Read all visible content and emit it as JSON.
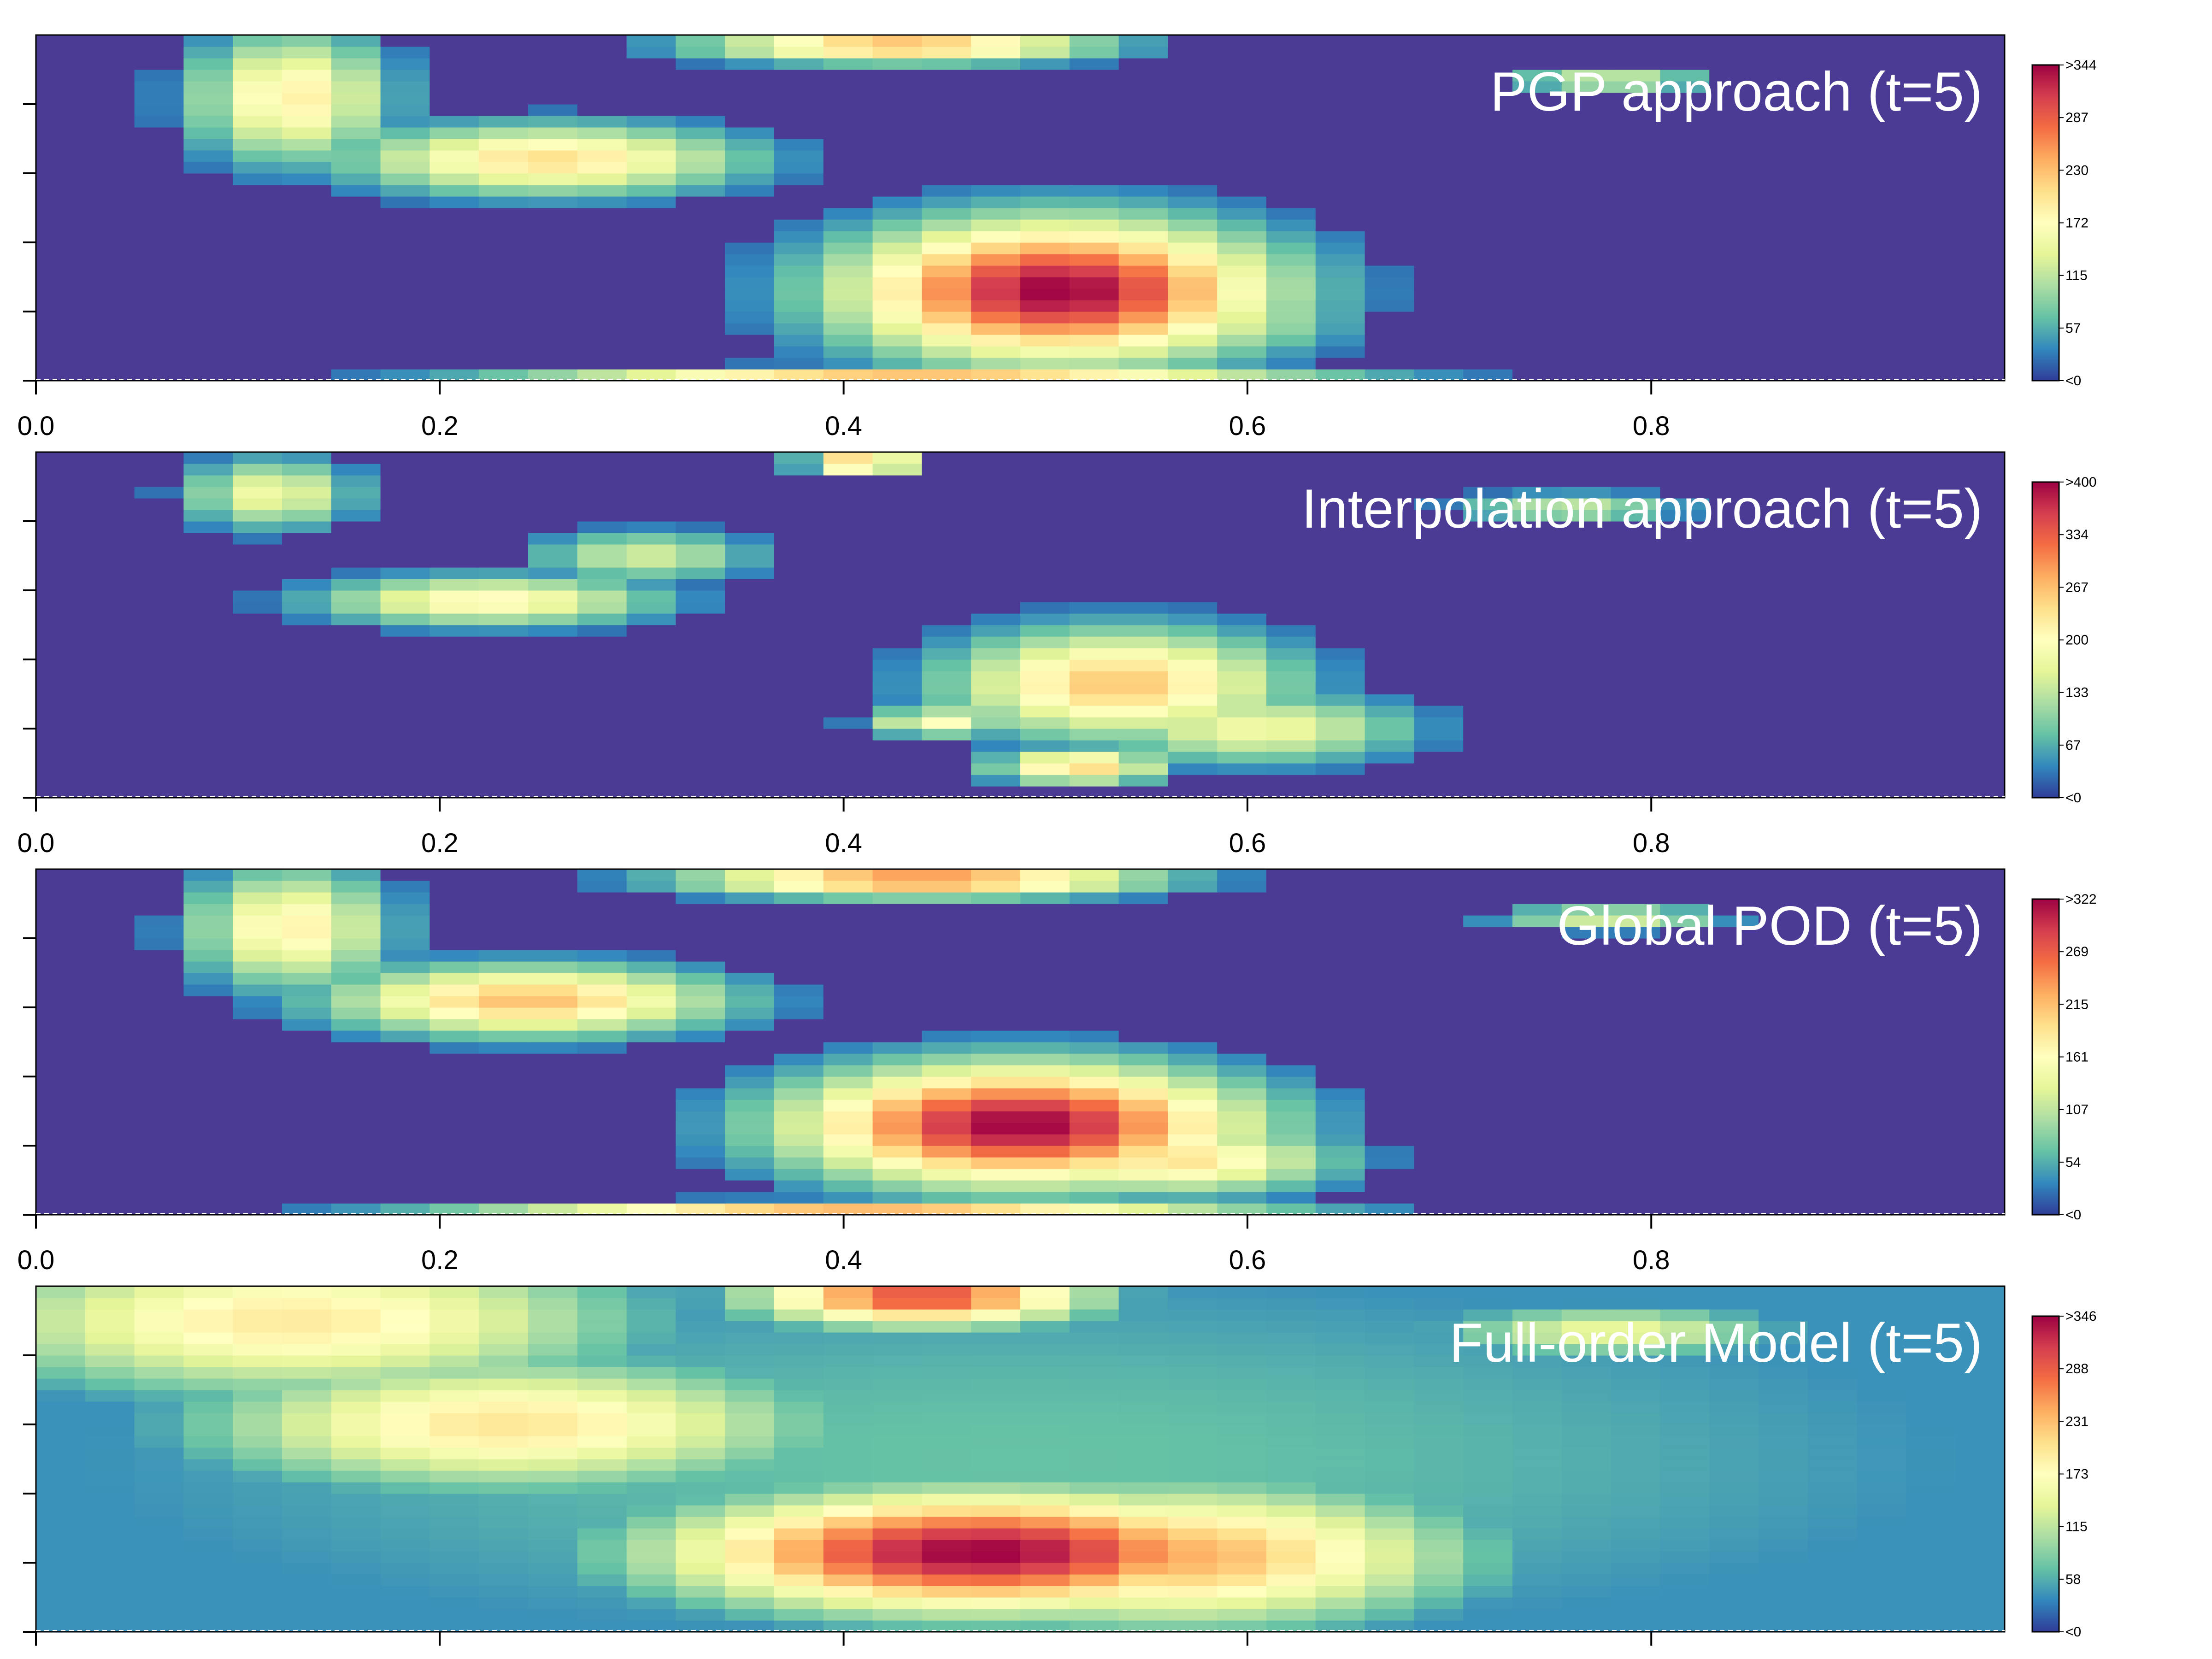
{
  "chart_data": [
    {
      "type": "heatmap",
      "title": "PGP approach (t=5)",
      "xlim": [
        0,
        0.975
      ],
      "xticks": [
        "0.0",
        "0.2",
        "0.4",
        "0.6",
        "0.8"
      ],
      "colorbar_ticks": [
        ">344",
        "287",
        "230",
        "172",
        "115",
        "57",
        "<0"
      ],
      "vmax": 344,
      "grid_size": [
        40,
        30
      ],
      "blobs": [
        {
          "x": 0.52,
          "y": 0.26,
          "sx": 0.075,
          "sy": 0.14,
          "v": 344
        },
        {
          "x": 0.59,
          "y": 0.18,
          "sx": 0.05,
          "sy": 0.08,
          "v": 150
        },
        {
          "x": 0.26,
          "y": 0.64,
          "sx": 0.07,
          "sy": 0.07,
          "v": 205
        },
        {
          "x": 0.13,
          "y": 0.82,
          "sx": 0.035,
          "sy": 0.13,
          "v": 190
        },
        {
          "x": 0.44,
          "y": 0.97,
          "sx": 0.07,
          "sy": 0.035,
          "v": 240
        },
        {
          "x": 0.8,
          "y": 0.87,
          "sx": 0.035,
          "sy": 0.025,
          "v": 135
        },
        {
          "x": 0.45,
          "y": 0.02,
          "sx": 0.14,
          "sy": 0.015,
          "v": 230
        }
      ],
      "threshold": 25
    },
    {
      "type": "heatmap",
      "title": "Interpolation approach (t=5)",
      "xlim": [
        0,
        0.975
      ],
      "xticks": [
        "0.0",
        "0.2",
        "0.4",
        "0.6",
        "0.8"
      ],
      "colorbar_ticks": [
        ">400",
        "334",
        "267",
        "200",
        "133",
        "67",
        "<0"
      ],
      "vmax": 400,
      "grid_size": [
        40,
        30
      ],
      "blobs": [
        {
          "x": 0.55,
          "y": 0.33,
          "sx": 0.06,
          "sy": 0.11,
          "v": 260
        },
        {
          "x": 0.55,
          "y": 0.4,
          "sx": 0.012,
          "sy": 0.025,
          "v": 150
        },
        {
          "x": 0.53,
          "y": 0.09,
          "sx": 0.03,
          "sy": 0.035,
          "v": 250
        },
        {
          "x": 0.62,
          "y": 0.2,
          "sx": 0.055,
          "sy": 0.07,
          "v": 180
        },
        {
          "x": 0.23,
          "y": 0.57,
          "sx": 0.06,
          "sy": 0.05,
          "v": 210
        },
        {
          "x": 0.31,
          "y": 0.7,
          "sx": 0.04,
          "sy": 0.05,
          "v": 150
        },
        {
          "x": 0.12,
          "y": 0.88,
          "sx": 0.03,
          "sy": 0.07,
          "v": 180
        },
        {
          "x": 0.42,
          "y": 0.97,
          "sx": 0.02,
          "sy": 0.025,
          "v": 290
        },
        {
          "x": 0.78,
          "y": 0.84,
          "sx": 0.04,
          "sy": 0.03,
          "v": 140
        },
        {
          "x": 0.46,
          "y": 0.22,
          "sx": 0.025,
          "sy": 0.03,
          "v": 200
        }
      ],
      "threshold": 28
    },
    {
      "type": "heatmap",
      "title": "Global POD (t=5)",
      "xlim": [
        0,
        0.975
      ],
      "xticks": [
        "0.0",
        "0.2",
        "0.4",
        "0.6",
        "0.8"
      ],
      "colorbar_ticks": [
        ">322",
        "269",
        "215",
        "161",
        "107",
        "54",
        "<0"
      ],
      "vmax": 322,
      "grid_size": [
        40,
        30
      ],
      "blobs": [
        {
          "x": 0.5,
          "y": 0.26,
          "sx": 0.08,
          "sy": 0.12,
          "v": 322
        },
        {
          "x": 0.58,
          "y": 0.16,
          "sx": 0.055,
          "sy": 0.07,
          "v": 190
        },
        {
          "x": 0.25,
          "y": 0.62,
          "sx": 0.07,
          "sy": 0.07,
          "v": 215
        },
        {
          "x": 0.13,
          "y": 0.83,
          "sx": 0.035,
          "sy": 0.12,
          "v": 175
        },
        {
          "x": 0.45,
          "y": 0.97,
          "sx": 0.08,
          "sy": 0.035,
          "v": 250
        },
        {
          "x": 0.8,
          "y": 0.86,
          "sx": 0.04,
          "sy": 0.025,
          "v": 130
        },
        {
          "x": 0.42,
          "y": 0.02,
          "sx": 0.14,
          "sy": 0.015,
          "v": 220
        }
      ],
      "threshold": 25
    },
    {
      "type": "heatmap",
      "title": "Full-order Model (t=5)",
      "xlim": [
        0,
        0.975
      ],
      "xticks": [
        "",
        "",
        "",
        "",
        ""
      ],
      "colorbar_ticks": [
        ">346",
        "288",
        "231",
        "173",
        "115",
        "58",
        "<0"
      ],
      "vmax": 346,
      "grid_size": [
        40,
        30
      ],
      "blobs": [
        {
          "x": 0.48,
          "y": 0.23,
          "sx": 0.11,
          "sy": 0.12,
          "v": 346
        },
        {
          "x": 0.58,
          "y": 0.22,
          "sx": 0.1,
          "sy": 0.14,
          "v": 240
        },
        {
          "x": 0.24,
          "y": 0.6,
          "sx": 0.11,
          "sy": 0.13,
          "v": 200
        },
        {
          "x": 0.13,
          "y": 0.9,
          "sx": 0.12,
          "sy": 0.15,
          "v": 195
        },
        {
          "x": 0.45,
          "y": 0.97,
          "sx": 0.06,
          "sy": 0.06,
          "v": 300
        },
        {
          "x": 0.8,
          "y": 0.87,
          "sx": 0.06,
          "sy": 0.05,
          "v": 150
        },
        {
          "x": 0.5,
          "y": 0.5,
          "sx": 0.45,
          "sy": 0.5,
          "v": 70
        }
      ],
      "background": 40,
      "threshold": 0
    }
  ],
  "colors": {
    "background_cell": "#4B3B94",
    "colormap": [
      "#2F3C99",
      "#3288BD",
      "#66C2A5",
      "#ABDDA4",
      "#E6F598",
      "#FFFFBF",
      "#FEE08B",
      "#FDAE61",
      "#F46D43",
      "#D53E4F",
      "#9E0142"
    ]
  }
}
